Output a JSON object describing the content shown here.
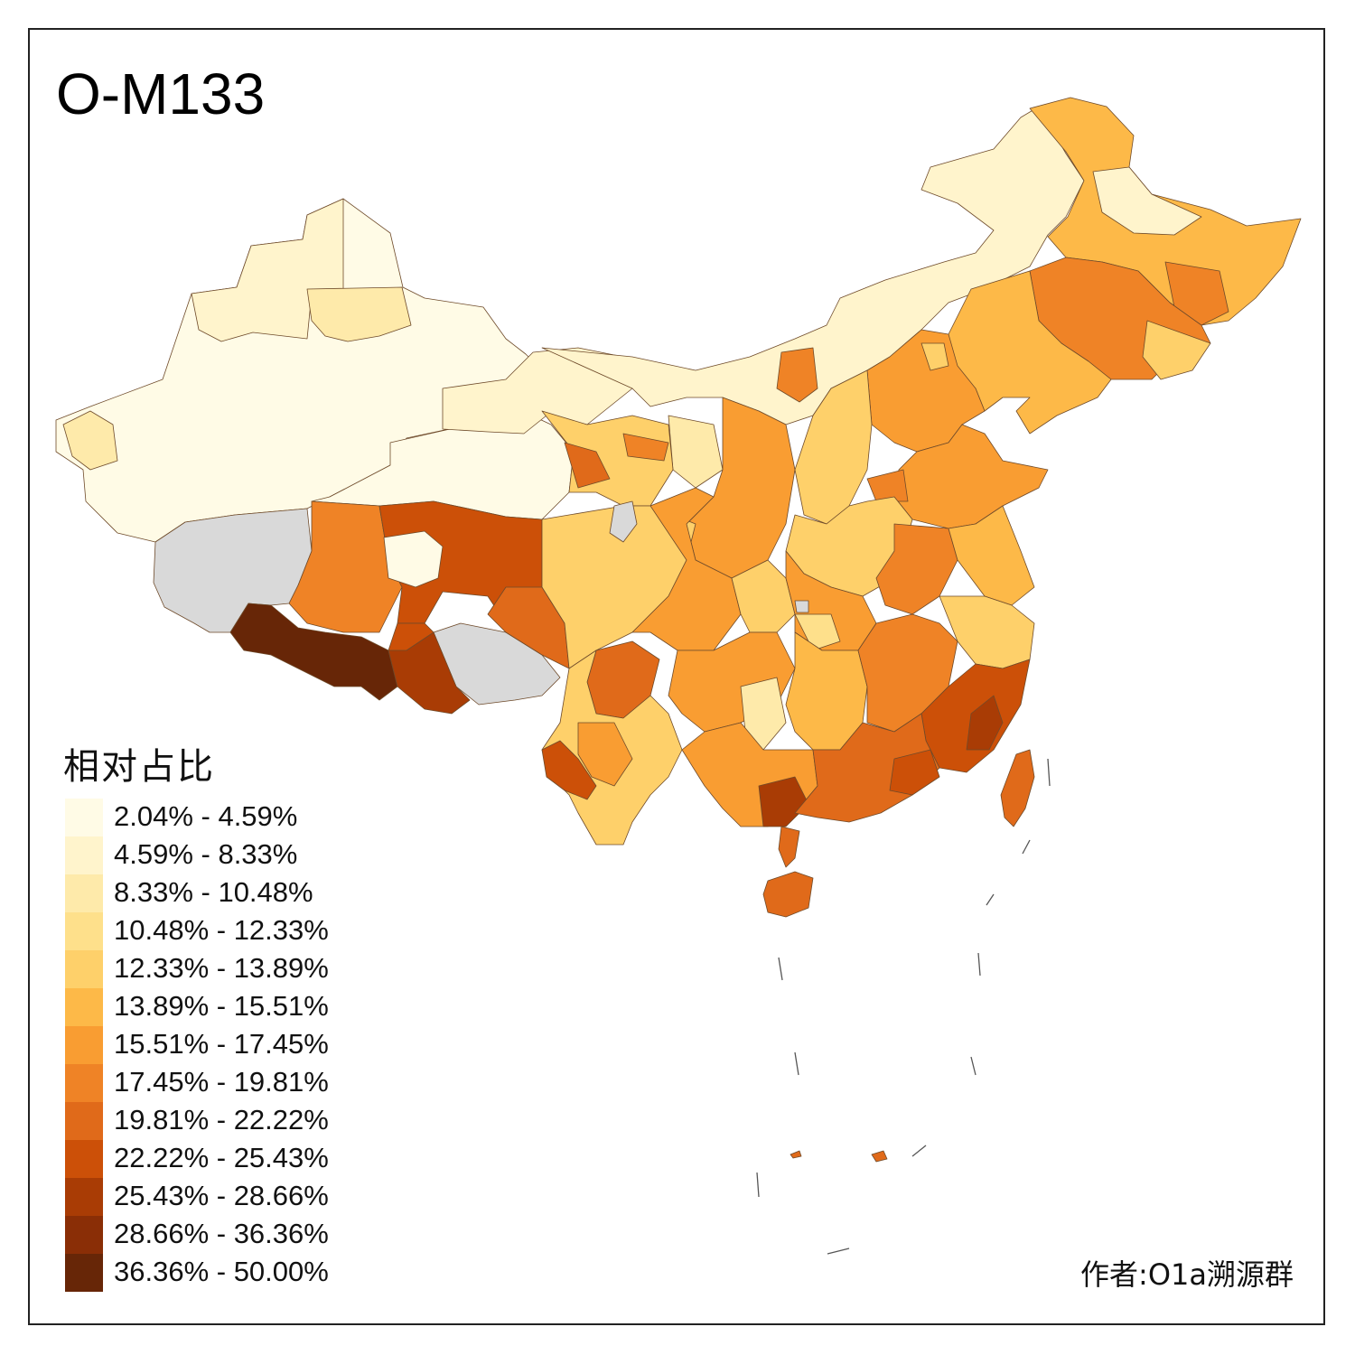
{
  "title": "O-M133",
  "legend": {
    "title": "相对占比",
    "items": [
      {
        "label": "2.04% - 4.59%",
        "color": "#fffbe6"
      },
      {
        "label": "4.59% - 8.33%",
        "color": "#fff4cc"
      },
      {
        "label": "8.33% - 10.48%",
        "color": "#feeaaa"
      },
      {
        "label": "10.48% - 12.33%",
        "color": "#fee08b"
      },
      {
        "label": "12.33% - 13.89%",
        "color": "#fed06a"
      },
      {
        "label": "13.89% - 15.51%",
        "color": "#fdb948"
      },
      {
        "label": "15.51% - 17.45%",
        "color": "#f99d32"
      },
      {
        "label": "17.45% - 19.81%",
        "color": "#ef8326"
      },
      {
        "label": "19.81% - 22.22%",
        "color": "#e06a1a"
      },
      {
        "label": "22.22% - 25.43%",
        "color": "#cc5008"
      },
      {
        "label": "25.43% - 28.66%",
        "color": "#a93c05"
      },
      {
        "label": "28.66% - 36.36%",
        "color": "#8a2e06"
      },
      {
        "label": "36.36% - 50.00%",
        "color": "#672607"
      }
    ],
    "no_data_color": "#d9d9d9"
  },
  "author": "作者:O1a溯源群"
}
